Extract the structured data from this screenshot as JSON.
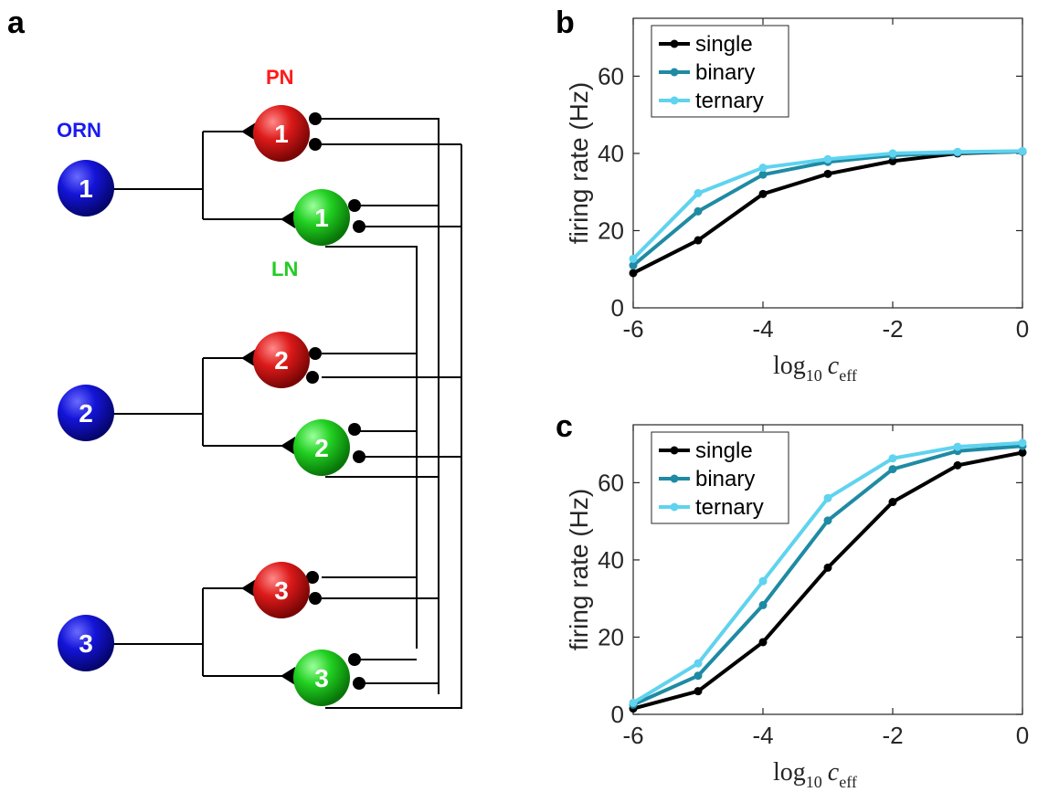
{
  "panel_labels": {
    "a": "a",
    "b": "b",
    "c": "c"
  },
  "circuit": {
    "orn_label": "ORN",
    "pn_label": "PN",
    "ln_label": "LN",
    "colors": {
      "orn": "#0b0bd6",
      "pn": "#e01a1a",
      "ln": "#1ed01e",
      "pn_label": "#ff1a1a",
      "orn_label": "#1a1af0",
      "ln_label": "#22cc22"
    },
    "orn_numbers": [
      "1",
      "2",
      "3"
    ],
    "pn_numbers": [
      "1",
      "2",
      "3"
    ],
    "ln_numbers": [
      "1",
      "2",
      "3"
    ]
  },
  "chart_data": [
    {
      "type": "line",
      "panel": "b",
      "xlabel_main": "log",
      "xlabel_sub": "10",
      "xlabel_var": "c",
      "xlabel_var_sub": "eff",
      "ylabel": "firing rate (Hz)",
      "xlim": [
        -6,
        0
      ],
      "ylim": [
        0,
        75
      ],
      "xticks": [
        -6,
        -4,
        -2,
        0
      ],
      "xtick_labels": [
        "-6",
        "-4",
        "-2",
        "0"
      ],
      "yticks": [
        0,
        20,
        40,
        60
      ],
      "ytick_labels": [
        "0",
        "20",
        "40",
        "60"
      ],
      "legend_position": "top-left",
      "x": [
        -6,
        -5,
        -4,
        -3,
        -2,
        -1,
        0
      ],
      "series": [
        {
          "name": "single",
          "color": "#000000",
          "values": [
            9,
            17.5,
            29.5,
            34.7,
            38,
            40,
            40.5
          ]
        },
        {
          "name": "binary",
          "color": "#1f8aa3",
          "values": [
            11,
            25,
            34.5,
            37.8,
            39.5,
            40.2,
            40.5
          ]
        },
        {
          "name": "ternary",
          "color": "#5fd3ef",
          "values": [
            12.7,
            29.7,
            36.3,
            38.5,
            40,
            40.4,
            40.6
          ]
        }
      ]
    },
    {
      "type": "line",
      "panel": "c",
      "xlabel_main": "log",
      "xlabel_sub": "10",
      "xlabel_var": "c",
      "xlabel_var_sub": "eff",
      "ylabel": "firing rate (Hz)",
      "xlim": [
        -6,
        0
      ],
      "ylim": [
        0,
        75
      ],
      "xticks": [
        -6,
        -4,
        -2,
        0
      ],
      "xtick_labels": [
        "-6",
        "-4",
        "-2",
        "0"
      ],
      "yticks": [
        0,
        20,
        40,
        60
      ],
      "ytick_labels": [
        "0",
        "20",
        "40",
        "60"
      ],
      "legend_position": "top-left",
      "x": [
        -6,
        -5,
        -4,
        -3,
        -2,
        -1,
        0
      ],
      "series": [
        {
          "name": "single",
          "color": "#000000",
          "values": [
            1.5,
            6,
            18.7,
            38,
            55,
            64.5,
            67.8
          ]
        },
        {
          "name": "binary",
          "color": "#1f8aa3",
          "values": [
            2.5,
            10,
            28.3,
            50.2,
            63.5,
            68.2,
            69.5
          ]
        },
        {
          "name": "ternary",
          "color": "#5fd3ef",
          "values": [
            3,
            13.2,
            34.5,
            56,
            66.3,
            69.3,
            70.3
          ]
        }
      ]
    }
  ]
}
